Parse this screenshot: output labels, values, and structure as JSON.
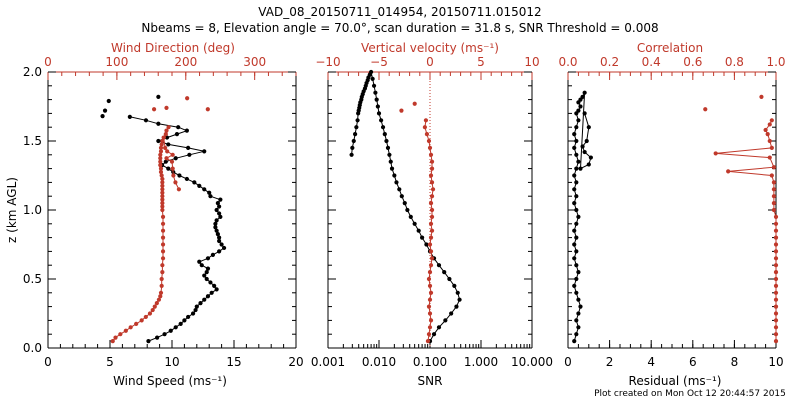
{
  "figure": {
    "title_line1": "VAD_08_20150711_014954, 20150711.015012",
    "title_line2": "Nbeams = 8, Elevation angle = 70.0°, scan duration = 31.8 s, SNR Threshold = 0.008",
    "credit": "Plot created on Mon Oct 12 20:44:57 2015",
    "ylabel": "z (km AGL)",
    "colors": {
      "primary": "#000000",
      "secondary": "#c0392b"
    }
  },
  "chart_data": [
    {
      "type": "line",
      "ylabel": "z (km AGL)",
      "ylim": [
        0,
        2.0
      ],
      "yticks": [
        "0.0",
        "0.5",
        "1.0",
        "1.5",
        "2.0"
      ],
      "xlabel": "Wind Speed (ms⁻¹)",
      "xlim": [
        0,
        20
      ],
      "xticks": [
        "0",
        "5",
        "10",
        "15",
        "20"
      ],
      "top_label": "Wind Direction (deg)",
      "top_xlim": [
        0,
        360
      ],
      "top_xticks": [
        "0",
        "100",
        "200",
        "300"
      ],
      "series": [
        {
          "color": "#000000",
          "axis": "bottom",
          "x": [
            8.1,
            8.8,
            9.4,
            9.9,
            10.3,
            10.7,
            11.0,
            11.3,
            11.7,
            11.9,
            12.0,
            12.3,
            12.6,
            12.9,
            13.2,
            13.6,
            13.4,
            13.1,
            12.8,
            12.6,
            12.8,
            12.9,
            12.4,
            12.2,
            12.9,
            13.3,
            13.8,
            14.2,
            14.0,
            13.8,
            13.8,
            13.7,
            13.6,
            13.5,
            13.5,
            13.6,
            13.9,
            13.8,
            13.6,
            13.8,
            13.7,
            13.9,
            13.1,
            13.0,
            12.6,
            12.2,
            11.8,
            11.2,
            10.6,
            10.1,
            9.7,
            9.2,
            9.5,
            10.3,
            11.4,
            12.6,
            11.3,
            9.7,
            8.9,
            9.6,
            10.4,
            11.2,
            10.5,
            8.9,
            7.9,
            6.6
          ],
          "y": [
            0.05,
            0.075,
            0.1,
            0.125,
            0.15,
            0.175,
            0.2,
            0.225,
            0.25,
            0.275,
            0.3,
            0.325,
            0.35,
            0.375,
            0.4,
            0.425,
            0.45,
            0.475,
            0.5,
            0.525,
            0.55,
            0.575,
            0.6,
            0.625,
            0.65,
            0.675,
            0.7,
            0.725,
            0.75,
            0.775,
            0.8,
            0.825,
            0.85,
            0.875,
            0.9,
            0.925,
            0.95,
            0.975,
            1.0,
            1.025,
            1.05,
            1.075,
            1.1,
            1.125,
            1.15,
            1.175,
            1.2,
            1.225,
            1.25,
            1.275,
            1.3,
            1.325,
            1.35,
            1.375,
            1.4,
            1.425,
            1.45,
            1.475,
            1.5,
            1.525,
            1.55,
            1.575,
            1.6,
            1.625,
            1.65,
            1.675
          ],
          "breaks_after": [],
          "extra_points": [
            {
              "x": 4.9,
              "y": 1.79
            },
            {
              "x": 4.6,
              "y": 1.72
            },
            {
              "x": 4.4,
              "y": 1.68
            },
            {
              "x": 8.9,
              "y": 1.82
            }
          ]
        },
        {
          "color": "#c0392b",
          "axis": "top",
          "x": [
            94,
            98,
            105,
            113,
            120,
            128,
            136,
            142,
            148,
            152,
            155,
            158,
            161,
            163,
            164,
            165,
            165,
            166,
            166,
            167,
            167,
            167,
            167,
            167,
            167,
            167,
            166,
            166,
            166,
            166,
            166,
            166,
            166,
            166,
            166,
            166,
            165,
            164,
            164,
            163,
            163,
            163,
            163,
            164,
            164,
            165,
            166,
            168,
            171,
            172,
            175,
            168,
            170,
            173,
            181,
            172,
            180,
            181,
            182,
            185,
            190
          ],
          "y": [
            0.05,
            0.075,
            0.1,
            0.125,
            0.15,
            0.175,
            0.2,
            0.225,
            0.25,
            0.275,
            0.3,
            0.325,
            0.35,
            0.375,
            0.4,
            0.45,
            0.5,
            0.55,
            0.6,
            0.65,
            0.7,
            0.75,
            0.8,
            0.85,
            0.9,
            0.95,
            1.0,
            1.025,
            1.05,
            1.075,
            1.1,
            1.125,
            1.15,
            1.175,
            1.2,
            1.225,
            1.25,
            1.275,
            1.3,
            1.325,
            1.35,
            1.375,
            1.4,
            1.425,
            1.45,
            1.475,
            1.5,
            1.525,
            1.55,
            1.575,
            1.6,
            1.525,
            1.45,
            1.425,
            1.4,
            1.375,
            1.35,
            1.3,
            1.25,
            1.2,
            1.15
          ],
          "extra_points": [
            {
              "x": 154,
              "y": 1.73
            },
            {
              "x": 172,
              "y": 1.74
            },
            {
              "x": 202,
              "y": 1.81
            },
            {
              "x": 232,
              "y": 1.73
            }
          ]
        }
      ]
    },
    {
      "type": "line",
      "ylim": [
        0,
        2.0
      ],
      "xlabel": "SNR",
      "xscale": "log",
      "xlim": [
        0.001,
        10
      ],
      "xticks": [
        "0.001",
        "0.010",
        "0.100",
        "1.000",
        "10.000"
      ],
      "top_label": "Vertical velocity (ms⁻¹)",
      "top_xlim": [
        -10,
        10
      ],
      "top_xticks": [
        "−10",
        "−5",
        "0",
        "5",
        "10"
      ],
      "series": [
        {
          "color": "#000000",
          "axis": "bottom",
          "x": [
            0.1,
            0.12,
            0.15,
            0.2,
            0.26,
            0.33,
            0.38,
            0.35,
            0.3,
            0.24,
            0.19,
            0.15,
            0.12,
            0.1,
            0.085,
            0.07,
            0.06,
            0.05,
            0.042,
            0.036,
            0.032,
            0.028,
            0.025,
            0.022,
            0.02,
            0.018,
            0.017,
            0.016,
            0.015,
            0.014,
            0.013,
            0.012,
            0.011,
            0.01,
            0.0095,
            0.009,
            0.0085,
            0.008,
            0.0075,
            0.007,
            0.0066,
            0.0062,
            0.006,
            0.0057,
            0.0055,
            0.0053,
            0.005,
            0.0048,
            0.0046,
            0.0045,
            0.0043,
            0.0042,
            0.0041,
            0.004,
            0.0039,
            0.0038,
            0.0036,
            0.0034,
            0.0032,
            0.003,
            0.0029
          ],
          "y": [
            0.05,
            0.1,
            0.15,
            0.2,
            0.25,
            0.3,
            0.35,
            0.4,
            0.45,
            0.5,
            0.55,
            0.6,
            0.65,
            0.7,
            0.75,
            0.8,
            0.85,
            0.9,
            0.95,
            1.0,
            1.05,
            1.1,
            1.15,
            1.2,
            1.25,
            1.3,
            1.35,
            1.4,
            1.45,
            1.5,
            1.55,
            1.6,
            1.65,
            1.7,
            1.75,
            1.8,
            1.85,
            1.9,
            1.95,
            2.0,
            1.98,
            1.96,
            1.94,
            1.92,
            1.9,
            1.88,
            1.86,
            1.84,
            1.82,
            1.8,
            1.78,
            1.76,
            1.74,
            1.72,
            1.7,
            1.65,
            1.6,
            1.55,
            1.5,
            1.45,
            1.4
          ]
        },
        {
          "color": "#c0392b",
          "axis": "top",
          "x": [
            -0.2,
            -0.1,
            0.0,
            0.1,
            0.0,
            -0.1,
            0.0,
            0.1,
            0.0,
            -0.1,
            0.0,
            0.1,
            0.2,
            0.1,
            0.0,
            0.1,
            0.2,
            0.1,
            0.2,
            0.2,
            0.1,
            0.2,
            0.3,
            0.2,
            0.1,
            0.2,
            0.2,
            0.1,
            0.0,
            -0.1,
            -0.3,
            -0.5,
            -0.4
          ],
          "y": [
            0.05,
            0.1,
            0.15,
            0.2,
            0.25,
            0.3,
            0.35,
            0.4,
            0.45,
            0.5,
            0.55,
            0.6,
            0.65,
            0.7,
            0.75,
            0.8,
            0.85,
            0.9,
            0.95,
            1.0,
            1.05,
            1.1,
            1.15,
            1.2,
            1.25,
            1.3,
            1.35,
            1.4,
            1.45,
            1.5,
            1.55,
            1.6,
            1.65
          ],
          "extra_points": [
            {
              "x": -1.5,
              "y": 1.77
            },
            {
              "x": -2.8,
              "y": 1.72
            }
          ]
        }
      ],
      "reference_lines": [
        {
          "axis": "top",
          "x": 0,
          "color": "#c0392b",
          "style": "dotted"
        }
      ]
    },
    {
      "type": "line",
      "ylim": [
        0,
        2.0
      ],
      "xlabel": "Residual (ms⁻¹)",
      "xlim": [
        0,
        10
      ],
      "xticks": [
        "0",
        "2",
        "4",
        "6",
        "8",
        "10"
      ],
      "top_label": "Correlation",
      "top_xlim": [
        0,
        1.0
      ],
      "top_xticks": [
        "0.0",
        "0.2",
        "0.4",
        "0.6",
        "0.8",
        "1.0"
      ],
      "series": [
        {
          "color": "#000000",
          "axis": "bottom",
          "x": [
            0.3,
            0.4,
            0.5,
            0.4,
            0.5,
            0.6,
            0.5,
            0.4,
            0.3,
            0.4,
            0.5,
            0.4,
            0.3,
            0.4,
            0.3,
            0.4,
            0.3,
            0.4,
            0.5,
            0.4,
            0.3,
            0.4,
            0.3,
            0.4,
            0.3,
            0.4,
            0.5,
            0.4,
            0.3,
            0.4,
            0.3,
            0.4,
            0.5,
            0.4,
            0.5,
            0.6,
            0.5,
            0.6,
            0.7,
            0.8,
            0.6,
            1.0,
            1.1,
            0.8,
            0.7,
            0.9,
            1.0,
            0.8
          ],
          "y": [
            0.05,
            0.1,
            0.15,
            0.2,
            0.25,
            0.3,
            0.35,
            0.4,
            0.45,
            0.5,
            0.55,
            0.6,
            0.65,
            0.7,
            0.75,
            0.8,
            0.85,
            0.9,
            0.95,
            1.0,
            1.05,
            1.1,
            1.15,
            1.2,
            1.25,
            1.3,
            1.35,
            1.4,
            1.45,
            1.5,
            1.55,
            1.6,
            1.65,
            1.7,
            1.72,
            1.75,
            1.78,
            1.8,
            1.82,
            1.85,
            1.3,
            1.33,
            1.38,
            1.42,
            1.46,
            1.5,
            1.6,
            1.7
          ]
        },
        {
          "color": "#c0392b",
          "axis": "top",
          "x": [
            1.0,
            1.0,
            1.0,
            1.0,
            1.0,
            1.0,
            1.0,
            1.0,
            1.0,
            1.0,
            1.0,
            1.0,
            1.0,
            1.0,
            1.0,
            1.0,
            1.0,
            1.0,
            1.0,
            0.99,
            0.99,
            0.99,
            0.99,
            0.99,
            0.98,
            0.77,
            0.99,
            0.97,
            0.71,
            0.98,
            0.97,
            0.96,
            0.95,
            0.97,
            0.98
          ],
          "y": [
            0.05,
            0.1,
            0.15,
            0.2,
            0.25,
            0.3,
            0.35,
            0.4,
            0.45,
            0.5,
            0.55,
            0.6,
            0.65,
            0.7,
            0.75,
            0.8,
            0.85,
            0.9,
            0.95,
            1.0,
            1.05,
            1.1,
            1.15,
            1.2,
            1.25,
            1.28,
            1.31,
            1.38,
            1.41,
            1.45,
            1.5,
            1.55,
            1.58,
            1.62,
            1.65
          ],
          "extra_points": [
            {
              "x": 0.66,
              "y": 1.73
            },
            {
              "x": 0.93,
              "y": 1.82
            }
          ]
        }
      ]
    }
  ]
}
